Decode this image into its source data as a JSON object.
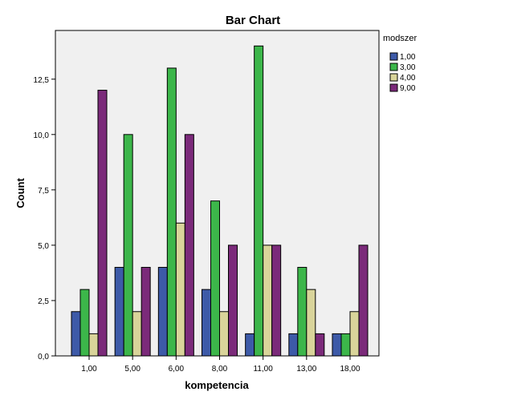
{
  "chart_data": {
    "type": "bar",
    "title": "Bar Chart",
    "xlabel": "kompetencia",
    "ylabel": "Count",
    "categories": [
      "1,00",
      "5,00",
      "6,00",
      "8,00",
      "11,00",
      "13,00",
      "18,00"
    ],
    "ylim": [
      0,
      14.7
    ],
    "yticks": [
      0,
      2.5,
      5,
      7.5,
      10,
      12.5
    ],
    "ytick_labels": [
      "0,0",
      "2,5",
      "5,0",
      "7,5",
      "10,0",
      "12,5"
    ],
    "grid": false,
    "legend": {
      "title": "modszer",
      "placement": "right"
    },
    "series": [
      {
        "name": "1,00",
        "color": "#3d5aa8",
        "values": [
          2,
          4,
          4,
          3,
          1,
          1,
          1
        ]
      },
      {
        "name": "3,00",
        "color": "#3cb64a",
        "values": [
          3,
          10,
          13,
          7,
          14,
          4,
          1
        ]
      },
      {
        "name": "4,00",
        "color": "#d9d49a",
        "values": [
          1,
          2,
          6,
          2,
          5,
          3,
          2
        ]
      },
      {
        "name": "9,00",
        "color": "#7b2a7a",
        "values": [
          12,
          4,
          10,
          5,
          5,
          1,
          5
        ]
      }
    ]
  }
}
